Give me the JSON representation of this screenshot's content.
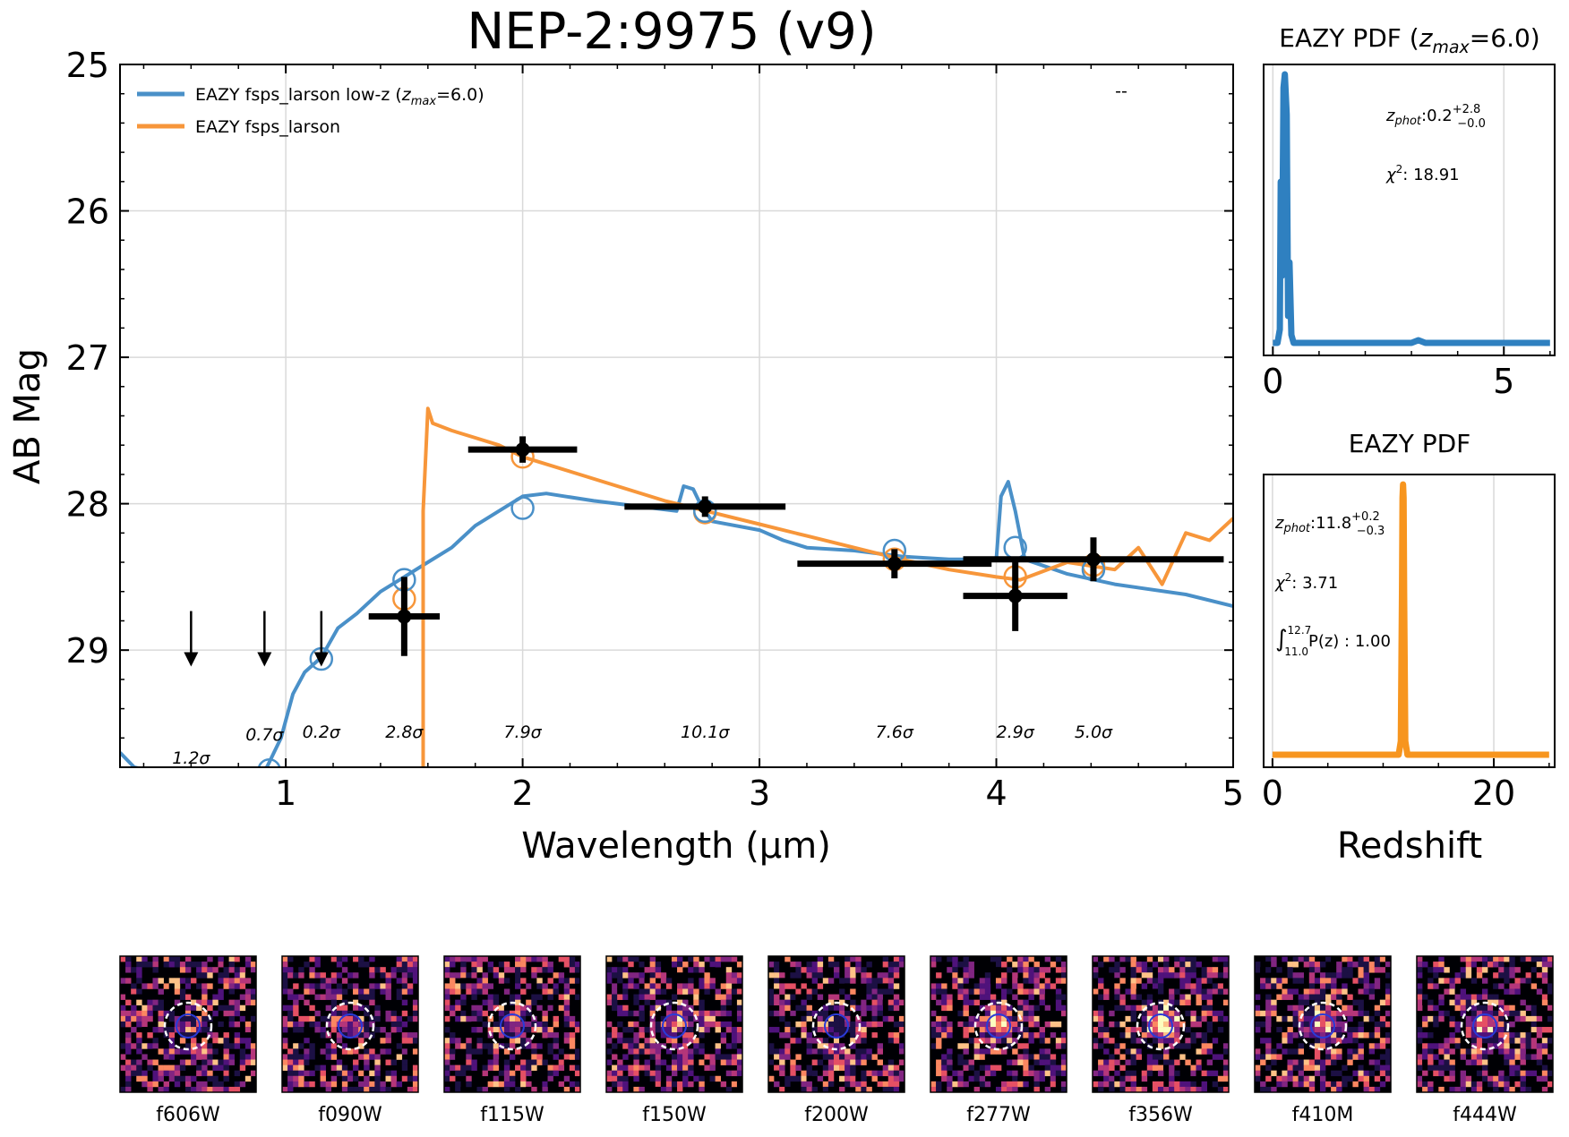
{
  "title": "NEP-2:9975 (v9)",
  "chart_data": [
    {
      "type": "line",
      "id": "sed",
      "title": "NEP-2:9975 (v9)",
      "xlabel": "Wavelength (µm)",
      "ylabel": "AB Mag",
      "xlim": [
        0.3,
        5.0
      ],
      "ylim": [
        29.8,
        25.0
      ],
      "xticks": [
        1,
        2,
        3,
        4,
        5
      ],
      "yticks": [
        25,
        26,
        27,
        28,
        29
      ],
      "grid": true,
      "legend_position": "top-left",
      "corner_note": "--",
      "series": [
        {
          "name": "EAZY fsps_larson low-z (",
          "name_sub": "z",
          "name_subscript": "max",
          "name_tail": "=6.0)",
          "color": "#4a90c8",
          "x": [
            0.3,
            0.36,
            0.5,
            0.7,
            0.85,
            0.92,
            0.98,
            1.03,
            1.08,
            1.15,
            1.22,
            1.3,
            1.4,
            1.5,
            1.6,
            1.7,
            1.8,
            1.9,
            2.0,
            2.1,
            2.3,
            2.5,
            2.65,
            2.68,
            2.72,
            2.75,
            2.8,
            3.0,
            3.1,
            3.2,
            3.4,
            3.6,
            3.8,
            4.0,
            4.02,
            4.05,
            4.08,
            4.12,
            4.3,
            4.5,
            4.8,
            5.0
          ],
          "y": [
            29.7,
            29.8,
            29.85,
            29.9,
            29.85,
            29.8,
            29.6,
            29.3,
            29.15,
            29.05,
            28.85,
            28.75,
            28.6,
            28.5,
            28.4,
            28.3,
            28.15,
            28.05,
            27.95,
            27.93,
            27.98,
            28.02,
            28.05,
            27.88,
            27.9,
            28.0,
            28.12,
            28.18,
            28.25,
            28.3,
            28.32,
            28.36,
            28.38,
            28.38,
            27.95,
            27.85,
            28.05,
            28.38,
            28.48,
            28.55,
            28.62,
            28.7
          ]
        },
        {
          "name": "EAZY fsps_larson",
          "color": "#f7963a",
          "x": [
            1.58,
            1.58,
            1.6,
            1.62,
            1.7,
            1.8,
            1.9,
            2.0,
            2.2,
            2.4,
            2.6,
            2.8,
            3.0,
            3.2,
            3.4,
            3.6,
            3.8,
            4.0,
            4.1,
            4.3,
            4.5,
            4.6,
            4.7,
            4.8,
            4.9,
            5.0
          ],
          "y": [
            29.9,
            28.05,
            27.35,
            27.45,
            27.5,
            27.55,
            27.6,
            27.68,
            27.78,
            27.88,
            27.98,
            28.06,
            28.14,
            28.22,
            28.3,
            28.38,
            28.45,
            28.5,
            28.52,
            28.4,
            28.45,
            28.3,
            28.55,
            28.2,
            28.25,
            28.1
          ]
        }
      ],
      "photometry": [
        {
          "x": 1.5,
          "y": 28.77,
          "xerr": 0.15,
          "yerr": 0.27
        },
        {
          "x": 2.0,
          "y": 27.63,
          "xerr": 0.23,
          "yerr": 0.09
        },
        {
          "x": 2.77,
          "y": 28.02,
          "xerr": 0.34,
          "yerr": 0.07
        },
        {
          "x": 3.57,
          "y": 28.41,
          "xerr": 0.41,
          "yerr": 0.1
        },
        {
          "x": 4.08,
          "y": 28.63,
          "xerr": 0.22,
          "yerr": 0.24
        },
        {
          "x": 4.41,
          "y": 28.38,
          "xerr": 0.55,
          "yerr": 0.15
        }
      ],
      "upper_limits": [
        {
          "x": 0.6,
          "y": 29.1
        },
        {
          "x": 0.91,
          "y": 29.1
        },
        {
          "x": 1.15,
          "y": 29.1
        }
      ],
      "model_points_lowz": [
        {
          "x": 0.93,
          "y": 29.82
        },
        {
          "x": 1.15,
          "y": 29.06
        },
        {
          "x": 1.5,
          "y": 28.52
        },
        {
          "x": 2.0,
          "y": 28.03
        },
        {
          "x": 2.77,
          "y": 28.05
        },
        {
          "x": 3.57,
          "y": 28.32
        },
        {
          "x": 4.08,
          "y": 28.3
        },
        {
          "x": 4.41,
          "y": 28.45
        }
      ],
      "model_points_highz": [
        {
          "x": 1.5,
          "y": 28.65
        },
        {
          "x": 2.0,
          "y": 27.68
        },
        {
          "x": 2.77,
          "y": 28.06
        },
        {
          "x": 3.57,
          "y": 28.38
        },
        {
          "x": 4.08,
          "y": 28.5
        },
        {
          "x": 4.41,
          "y": 28.42
        }
      ],
      "snr_labels": [
        {
          "x": 0.6,
          "y": 29.74,
          "text": "1.2σ"
        },
        {
          "x": 0.91,
          "y": 29.58,
          "text": "0.7σ"
        },
        {
          "x": 1.15,
          "y": 29.56,
          "text": "0.2σ"
        },
        {
          "x": 1.5,
          "y": 29.56,
          "text": "2.8σ"
        },
        {
          "x": 2.0,
          "y": 29.56,
          "text": "7.9σ"
        },
        {
          "x": 2.77,
          "y": 29.56,
          "text": "10.1σ"
        },
        {
          "x": 3.57,
          "y": 29.56,
          "text": "7.6σ"
        },
        {
          "x": 4.08,
          "y": 29.56,
          "text": "2.9σ"
        },
        {
          "x": 4.41,
          "y": 29.56,
          "text": "5.0σ"
        }
      ]
    },
    {
      "type": "line",
      "id": "pdf_lowz",
      "title_prefix": "EAZY PDF (",
      "title_var": "z",
      "title_sub": "max",
      "title_suffix": "=6.0)",
      "xlim": [
        -0.2,
        6.1
      ],
      "ylim": [
        0,
        1.05
      ],
      "xticks": [
        0,
        5
      ],
      "color": "#2f80c0",
      "x": [
        0.0,
        0.1,
        0.15,
        0.17,
        0.2,
        0.23,
        0.26,
        0.3,
        0.33,
        0.36,
        0.4,
        0.45,
        1.0,
        2.0,
        3.0,
        3.15,
        3.3,
        4.0,
        5.0,
        6.0
      ],
      "y": [
        0.0,
        0.0,
        0.05,
        0.6,
        0.25,
        0.95,
        1.0,
        0.85,
        0.1,
        0.3,
        0.03,
        0.0,
        0.0,
        0.0,
        0.0,
        0.01,
        0.0,
        0.0,
        0.0,
        0.0
      ],
      "zphot_prefix": "z",
      "zphot_sub": "phot",
      "zphot_value": ":0.2",
      "zphot_plus": "+2.8",
      "zphot_minus": "−0.0",
      "chi2_label": "χ",
      "chi2_power": "2",
      "chi2_value": ": 18.91"
    },
    {
      "type": "line",
      "id": "pdf_highz",
      "title": "EAZY PDF",
      "xlabel": "Redshift",
      "xlim": [
        -0.8,
        25.5
      ],
      "ylim": [
        0,
        1.05
      ],
      "xticks": [
        0,
        20
      ],
      "color": "#f7951e",
      "x": [
        0.0,
        10.0,
        11.4,
        11.6,
        11.7,
        11.75,
        11.8,
        11.85,
        11.9,
        12.0,
        12.2,
        13.0,
        25.0
      ],
      "y": [
        0.0,
        0.0,
        0.0,
        0.05,
        0.6,
        0.95,
        1.0,
        0.95,
        0.6,
        0.05,
        0.0,
        0.0,
        0.0
      ],
      "zphot_prefix": "z",
      "zphot_sub": "phot",
      "zphot_value": ":11.8",
      "zphot_plus": "+0.2",
      "zphot_minus": "−0.3",
      "chi2_label": "χ",
      "chi2_power": "2",
      "chi2_value": ": 3.71",
      "integral_sign": "∫",
      "integral_upper": "12.7",
      "integral_lower": "11.0",
      "integral_body": "P(z) : 1.00"
    }
  ],
  "stamps": [
    {
      "label": "f606W",
      "seed": 11,
      "core": 0.2
    },
    {
      "label": "f090W",
      "seed": 23,
      "core": 0.25
    },
    {
      "label": "f115W",
      "seed": 37,
      "core": 0.35
    },
    {
      "label": "f150W",
      "seed": 41,
      "core": 0.4
    },
    {
      "label": "f200W",
      "seed": 53,
      "core": 0.2
    },
    {
      "label": "f277W",
      "seed": 67,
      "core": 0.75
    },
    {
      "label": "f356W",
      "seed": 79,
      "core": 0.9
    },
    {
      "label": "f410M",
      "seed": 83,
      "core": 0.6
    },
    {
      "label": "f444W",
      "seed": 97,
      "core": 0.55
    }
  ],
  "colors": {
    "lowz": "#4a90c8",
    "highz": "#f7963a",
    "grid": "#d9d9d9",
    "phot": "#000000"
  }
}
